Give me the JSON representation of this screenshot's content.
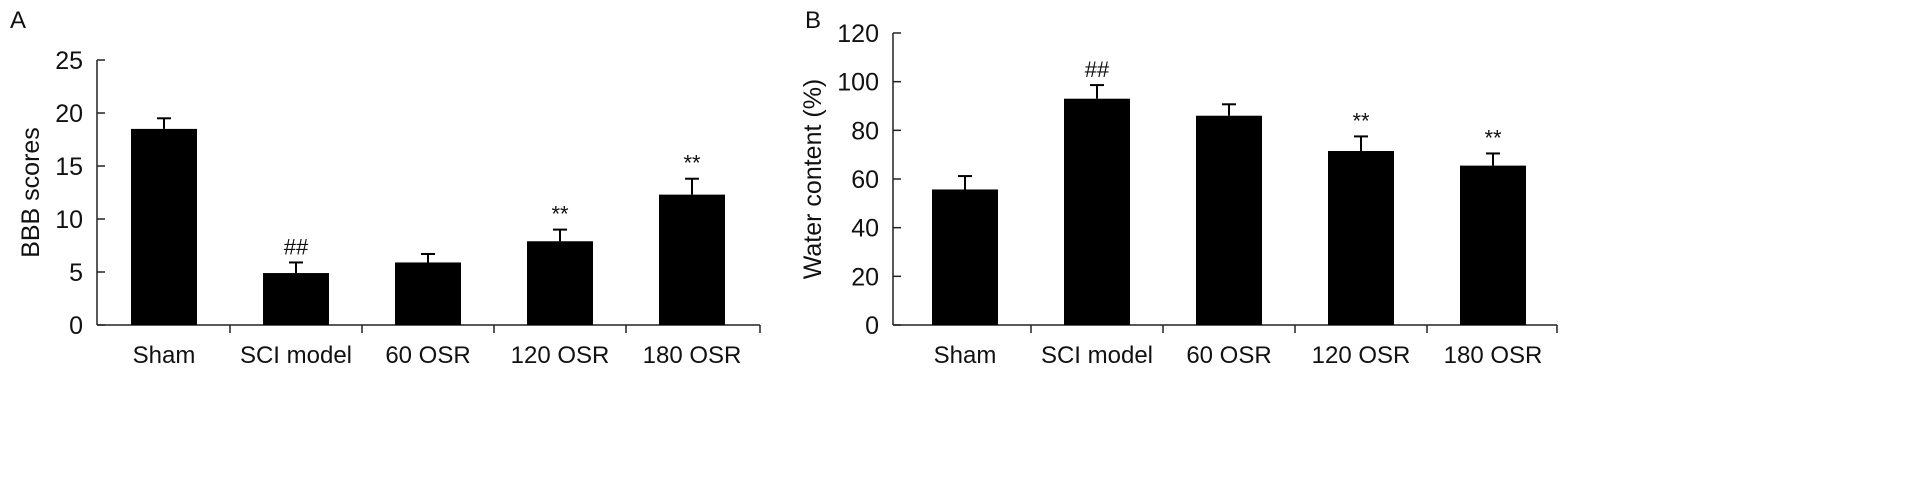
{
  "chart_data": [
    {
      "type": "bar",
      "panel_label": "A",
      "title": "",
      "xlabel": "",
      "ylabel": "BBB scores",
      "ylim": [
        0,
        25
      ],
      "yticks": [
        0,
        5,
        10,
        15,
        20,
        25
      ],
      "categories": [
        "Sham",
        "SCI model",
        "60 OSR",
        "120 OSR",
        "180 OSR"
      ],
      "values": [
        18.5,
        4.9,
        5.9,
        7.9,
        12.3
      ],
      "error_upper": [
        19.5,
        5.9,
        6.7,
        9.0,
        13.8
      ],
      "annotations": [
        "",
        "##",
        "",
        "**",
        "**"
      ],
      "bar_color": "#000000"
    },
    {
      "type": "bar",
      "panel_label": "B",
      "title": "",
      "xlabel": "",
      "ylabel": "Water content (%)",
      "ylim": [
        0,
        120
      ],
      "yticks": [
        0,
        20,
        40,
        60,
        80,
        100,
        120
      ],
      "categories": [
        "Sham",
        "SCI model",
        "60 OSR",
        "120 OSR",
        "180 OSR"
      ],
      "values": [
        55.7,
        93.0,
        86.0,
        71.5,
        65.5
      ],
      "error_upper": [
        61.2,
        98.6,
        90.7,
        77.5,
        70.5
      ],
      "annotations": [
        "",
        "##",
        "",
        "**",
        "**"
      ],
      "bar_color": "#000000"
    }
  ]
}
